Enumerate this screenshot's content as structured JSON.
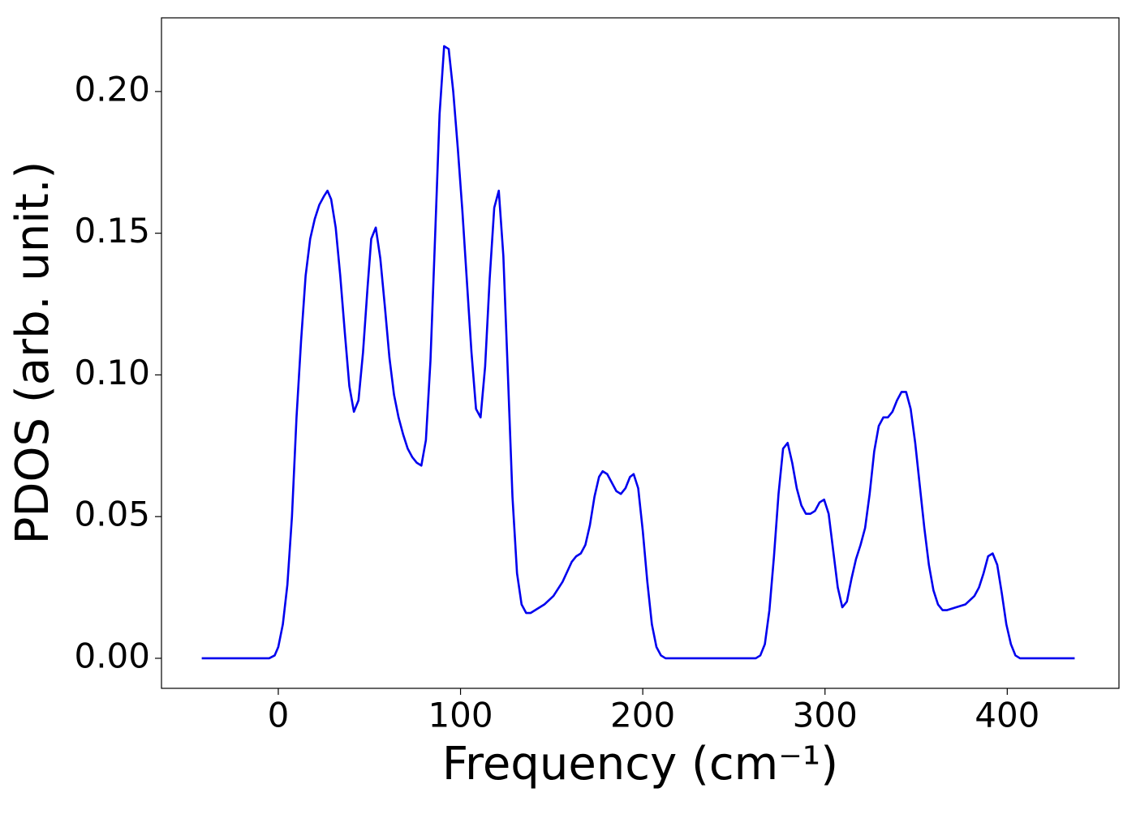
{
  "chart_data": {
    "type": "line",
    "x_label": "Frequency (cm⁻¹)",
    "y_label": "PDOS (arb. unit.)",
    "x": [
      -42,
      -5,
      -2,
      0,
      2.5,
      5,
      7.5,
      10,
      12.5,
      15,
      17.5,
      20,
      22.5,
      25,
      27,
      29,
      31.5,
      34,
      36.5,
      39,
      41.5,
      44,
      46.5,
      49,
      51,
      53.5,
      56,
      58.5,
      61,
      63.5,
      66,
      68.5,
      71,
      73.5,
      76,
      78.5,
      81,
      83.5,
      86,
      88.5,
      91,
      93.5,
      96,
      98.5,
      101,
      103.5,
      106,
      108.5,
      111,
      113.5,
      116,
      118.5,
      121,
      123.5,
      126,
      128.5,
      131,
      133.5,
      136,
      138.5,
      141,
      146,
      151,
      156,
      161,
      163.5,
      166,
      168.5,
      171,
      173.5,
      176,
      178,
      180.5,
      183,
      185.5,
      188,
      190.5,
      193,
      195,
      197.5,
      200,
      202.5,
      205,
      207.5,
      210,
      212.5,
      262,
      264.5,
      267,
      269.5,
      272,
      274.5,
      277,
      279.5,
      282,
      284.5,
      287,
      289.5,
      292,
      294.5,
      297,
      299.5,
      302,
      304.5,
      307,
      309.5,
      312,
      314.5,
      317,
      319.5,
      322,
      324.5,
      327,
      329.5,
      332,
      334.5,
      337,
      339.5,
      342,
      344.5,
      347,
      349.5,
      352,
      354.5,
      357,
      359.5,
      362,
      364.5,
      367,
      372,
      377,
      382,
      384.5,
      387,
      389.5,
      392,
      394.5,
      397,
      399.5,
      402,
      404.5,
      407,
      437
    ],
    "series": [
      {
        "color": "#0000ee",
        "values": [
          0,
          0,
          0.001,
          0.004,
          0.012,
          0.026,
          0.05,
          0.085,
          0.112,
          0.135,
          0.148,
          0.155,
          0.16,
          0.163,
          0.165,
          0.162,
          0.152,
          0.135,
          0.115,
          0.096,
          0.087,
          0.091,
          0.108,
          0.131,
          0.148,
          0.152,
          0.141,
          0.124,
          0.106,
          0.093,
          0.085,
          0.079,
          0.074,
          0.071,
          0.069,
          0.068,
          0.077,
          0.105,
          0.148,
          0.192,
          0.216,
          0.215,
          0.2,
          0.18,
          0.158,
          0.133,
          0.108,
          0.088,
          0.085,
          0.103,
          0.134,
          0.159,
          0.165,
          0.142,
          0.1,
          0.057,
          0.03,
          0.019,
          0.016,
          0.016,
          0.017,
          0.019,
          0.022,
          0.027,
          0.034,
          0.036,
          0.037,
          0.04,
          0.047,
          0.057,
          0.064,
          0.066,
          0.065,
          0.062,
          0.059,
          0.058,
          0.06,
          0.064,
          0.065,
          0.06,
          0.045,
          0.027,
          0.012,
          0.004,
          0.001,
          0,
          0,
          0.001,
          0.005,
          0.017,
          0.036,
          0.058,
          0.074,
          0.076,
          0.069,
          0.06,
          0.054,
          0.051,
          0.051,
          0.052,
          0.055,
          0.056,
          0.051,
          0.038,
          0.025,
          0.018,
          0.02,
          0.028,
          0.035,
          0.04,
          0.046,
          0.058,
          0.073,
          0.082,
          0.085,
          0.085,
          0.087,
          0.091,
          0.094,
          0.094,
          0.088,
          0.076,
          0.061,
          0.046,
          0.033,
          0.024,
          0.019,
          0.017,
          0.017,
          0.018,
          0.019,
          0.022,
          0.025,
          0.03,
          0.036,
          0.037,
          0.033,
          0.023,
          0.012,
          0.005,
          0.001,
          0,
          0
        ]
      }
    ],
    "xlim": [
      -64.1,
      461.3
    ],
    "ylim": [
      -0.0106,
      0.226
    ],
    "xticks": [
      0,
      100,
      200,
      300,
      400
    ],
    "yticks": [
      {
        "value": 0,
        "label": "0.00"
      },
      {
        "value": 0.05,
        "label": "0.05"
      },
      {
        "value": 0.1,
        "label": "0.10"
      },
      {
        "value": 0.15,
        "label": "0.15"
      },
      {
        "value": 0.2,
        "label": "0.20"
      }
    ],
    "grid": false
  }
}
